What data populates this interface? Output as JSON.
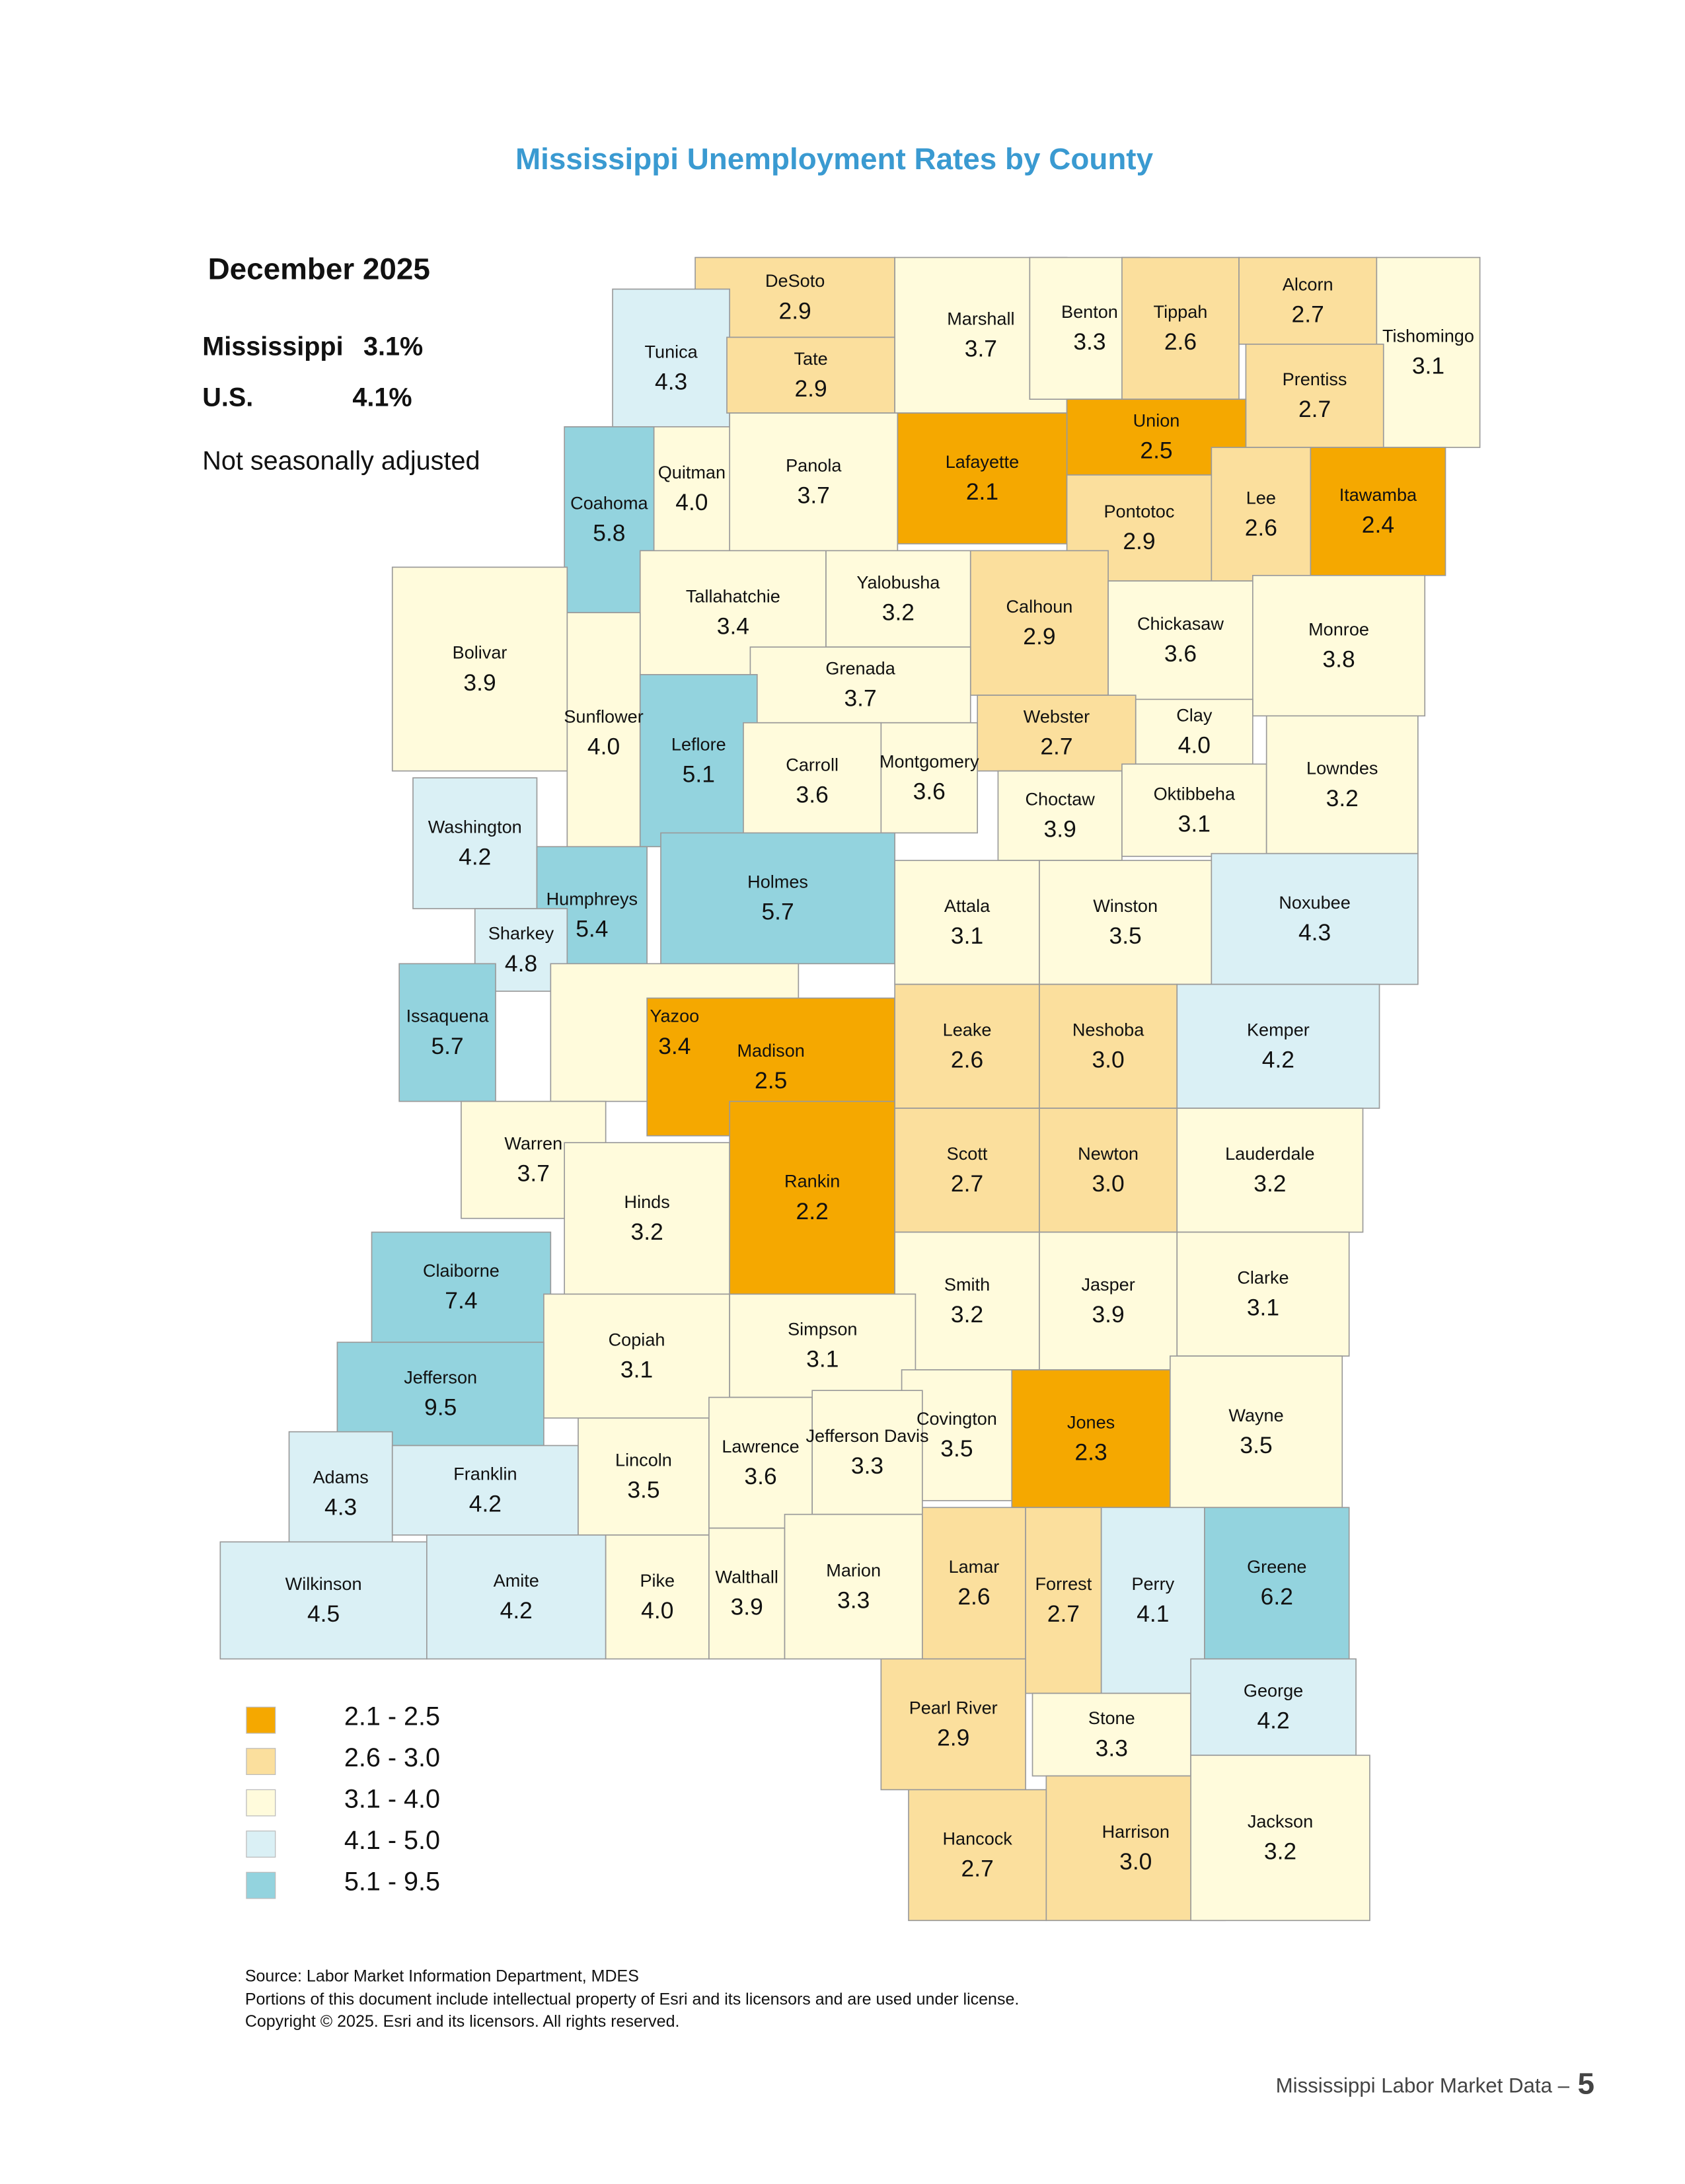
{
  "header": {
    "title": "Mississippi Unemployment Rates by County"
  },
  "summary": {
    "period": "December 2025",
    "rows": [
      {
        "label": "Mississippi",
        "value": "3.1%"
      },
      {
        "label": "U.S.",
        "value": "4.1%"
      }
    ],
    "note": "Not seasonally adjusted"
  },
  "counties": [
    {
      "name": "DeSoto",
      "rate": "2.9"
    },
    {
      "name": "Tunica",
      "rate": "4.3"
    },
    {
      "name": "Tate",
      "rate": "2.9"
    },
    {
      "name": "Marshall",
      "rate": "3.7"
    },
    {
      "name": "Benton",
      "rate": "3.3"
    },
    {
      "name": "Tippah",
      "rate": "2.6"
    },
    {
      "name": "Alcorn",
      "rate": "2.7"
    },
    {
      "name": "Tishomingo",
      "rate": "3.1"
    },
    {
      "name": "Prentiss",
      "rate": "2.7"
    },
    {
      "name": "Union",
      "rate": "2.5"
    },
    {
      "name": "Lafayette",
      "rate": "2.1"
    },
    {
      "name": "Panola",
      "rate": "3.7"
    },
    {
      "name": "Quitman",
      "rate": "4.0"
    },
    {
      "name": "Coahoma",
      "rate": "5.8"
    },
    {
      "name": "Pontotoc",
      "rate": "2.9"
    },
    {
      "name": "Lee",
      "rate": "2.6"
    },
    {
      "name": "Itawamba",
      "rate": "2.4"
    },
    {
      "name": "Bolivar",
      "rate": "3.9"
    },
    {
      "name": "Tallahatchie",
      "rate": "3.4"
    },
    {
      "name": "Yalobusha",
      "rate": "3.2"
    },
    {
      "name": "Calhoun",
      "rate": "2.9"
    },
    {
      "name": "Chickasaw",
      "rate": "3.6"
    },
    {
      "name": "Monroe",
      "rate": "3.8"
    },
    {
      "name": "Grenada",
      "rate": "3.7"
    },
    {
      "name": "Sunflower",
      "rate": "4.0"
    },
    {
      "name": "Leflore",
      "rate": "5.1"
    },
    {
      "name": "Carroll",
      "rate": "3.6"
    },
    {
      "name": "Montgomery",
      "rate": "3.6"
    },
    {
      "name": "Webster",
      "rate": "2.7"
    },
    {
      "name": "Clay",
      "rate": "4.0"
    },
    {
      "name": "Choctaw",
      "rate": "3.9"
    },
    {
      "name": "Oktibbeha",
      "rate": "3.1"
    },
    {
      "name": "Lowndes",
      "rate": "3.2"
    },
    {
      "name": "Washington",
      "rate": "4.2"
    },
    {
      "name": "Humphreys",
      "rate": "5.4"
    },
    {
      "name": "Holmes",
      "rate": "5.7"
    },
    {
      "name": "Attala",
      "rate": "3.1"
    },
    {
      "name": "Winston",
      "rate": "3.5"
    },
    {
      "name": "Noxubee",
      "rate": "4.3"
    },
    {
      "name": "Sharkey",
      "rate": "4.8"
    },
    {
      "name": "Issaquena",
      "rate": "5.7"
    },
    {
      "name": "Yazoo",
      "rate": "3.4"
    },
    {
      "name": "Madison",
      "rate": "2.5"
    },
    {
      "name": "Leake",
      "rate": "2.6"
    },
    {
      "name": "Neshoba",
      "rate": "3.0"
    },
    {
      "name": "Kemper",
      "rate": "4.2"
    },
    {
      "name": "Warren",
      "rate": "3.7"
    },
    {
      "name": "Hinds",
      "rate": "3.2"
    },
    {
      "name": "Rankin",
      "rate": "2.2"
    },
    {
      "name": "Scott",
      "rate": "2.7"
    },
    {
      "name": "Newton",
      "rate": "3.0"
    },
    {
      "name": "Lauderdale",
      "rate": "3.2"
    },
    {
      "name": "Claiborne",
      "rate": "7.4"
    },
    {
      "name": "Smith",
      "rate": "3.2"
    },
    {
      "name": "Jasper",
      "rate": "3.9"
    },
    {
      "name": "Clarke",
      "rate": "3.1"
    },
    {
      "name": "Copiah",
      "rate": "3.1"
    },
    {
      "name": "Simpson",
      "rate": "3.1"
    },
    {
      "name": "Jefferson",
      "rate": "9.5"
    },
    {
      "name": "Covington",
      "rate": "3.5"
    },
    {
      "name": "Jones",
      "rate": "2.3"
    },
    {
      "name": "Wayne",
      "rate": "3.5"
    },
    {
      "name": "Adams",
      "rate": "4.3"
    },
    {
      "name": "Franklin",
      "rate": "4.2"
    },
    {
      "name": "Lincoln",
      "rate": "3.5"
    },
    {
      "name": "Lawrence",
      "rate": "3.6"
    },
    {
      "name": "Jefferson Davis",
      "rate": "3.3"
    },
    {
      "name": "Wilkinson",
      "rate": "4.5"
    },
    {
      "name": "Amite",
      "rate": "4.2"
    },
    {
      "name": "Pike",
      "rate": "4.0"
    },
    {
      "name": "Walthall",
      "rate": "3.9"
    },
    {
      "name": "Marion",
      "rate": "3.3"
    },
    {
      "name": "Lamar",
      "rate": "2.6"
    },
    {
      "name": "Forrest",
      "rate": "2.7"
    },
    {
      "name": "Perry",
      "rate": "4.1"
    },
    {
      "name": "Greene",
      "rate": "6.2"
    },
    {
      "name": "Pearl River",
      "rate": "2.9"
    },
    {
      "name": "Stone",
      "rate": "3.3"
    },
    {
      "name": "George",
      "rate": "4.2"
    },
    {
      "name": "Hancock",
      "rate": "2.7"
    },
    {
      "name": "Harrison",
      "rate": "3.0"
    },
    {
      "name": "Jackson",
      "rate": "3.2"
    }
  ],
  "legend": [
    {
      "label": "2.1 - 2.5",
      "color": "#f5a800"
    },
    {
      "label": "2.6 - 3.0",
      "color": "#fbdf9d"
    },
    {
      "label": "3.1 - 4.0",
      "color": "#fffbdc"
    },
    {
      "label": "4.1 - 5.0",
      "color": "#daf0f5"
    },
    {
      "label": "5.1 - 9.5",
      "color": "#93d3de"
    }
  ],
  "source": [
    "Source: Labor Market Information Department, MDES",
    "Portions of this document include intellectual property of Esri and its licensors and are used under license.",
    "Copyright © 2025.  Esri and its licensors. All rights reserved."
  ],
  "footer": {
    "text": "Mississippi Labor Market Data –",
    "page": "5"
  }
}
